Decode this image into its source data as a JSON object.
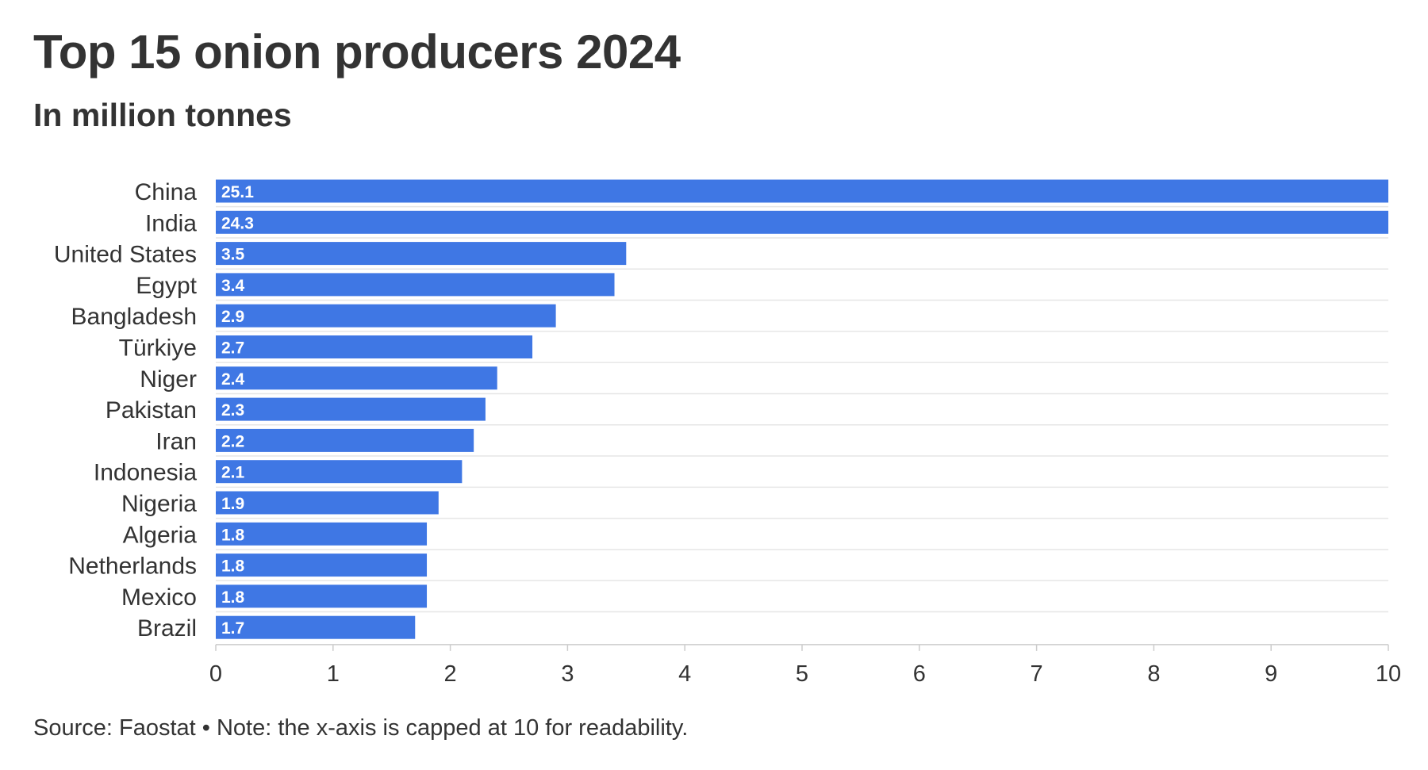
{
  "title": "Top 15 onion producers 2024",
  "subtitle": "In million tonnes",
  "footer": "Source: Faostat • Note: the x-axis is capped at 10 for readability.",
  "colors": {
    "bar": "#3f77e4",
    "grid": "#e6e6e6",
    "axis": "#cccccc",
    "text": "#333333",
    "background": "#ffffff"
  },
  "chart_data": {
    "type": "bar",
    "orientation": "horizontal",
    "categories": [
      "China",
      "India",
      "United States",
      "Egypt",
      "Bangladesh",
      "Türkiye",
      "Niger",
      "Pakistan",
      "Iran",
      "Indonesia",
      "Nigeria",
      "Algeria",
      "Netherlands",
      "Mexico",
      "Brazil"
    ],
    "values": [
      25.1,
      24.3,
      3.5,
      3.4,
      2.9,
      2.7,
      2.4,
      2.3,
      2.2,
      2.1,
      1.9,
      1.8,
      1.8,
      1.8,
      1.7
    ],
    "value_labels": [
      "25.1",
      "24.3",
      "3.5",
      "3.4",
      "2.9",
      "2.7",
      "2.4",
      "2.3",
      "2.2",
      "2.1",
      "1.9",
      "1.8",
      "1.8",
      "1.8",
      "1.7"
    ],
    "title": "Top 15 onion producers 2024",
    "subtitle": "In million tonnes",
    "xlabel": "",
    "ylabel": "",
    "xlim": [
      0,
      10
    ],
    "x_ticks": [
      0,
      1,
      2,
      3,
      4,
      5,
      6,
      7,
      8,
      9,
      10
    ],
    "x_tick_labels": [
      "0",
      "1",
      "2",
      "3",
      "4",
      "5",
      "6",
      "7",
      "8",
      "9",
      "10"
    ],
    "grid": true,
    "legend": "none"
  }
}
